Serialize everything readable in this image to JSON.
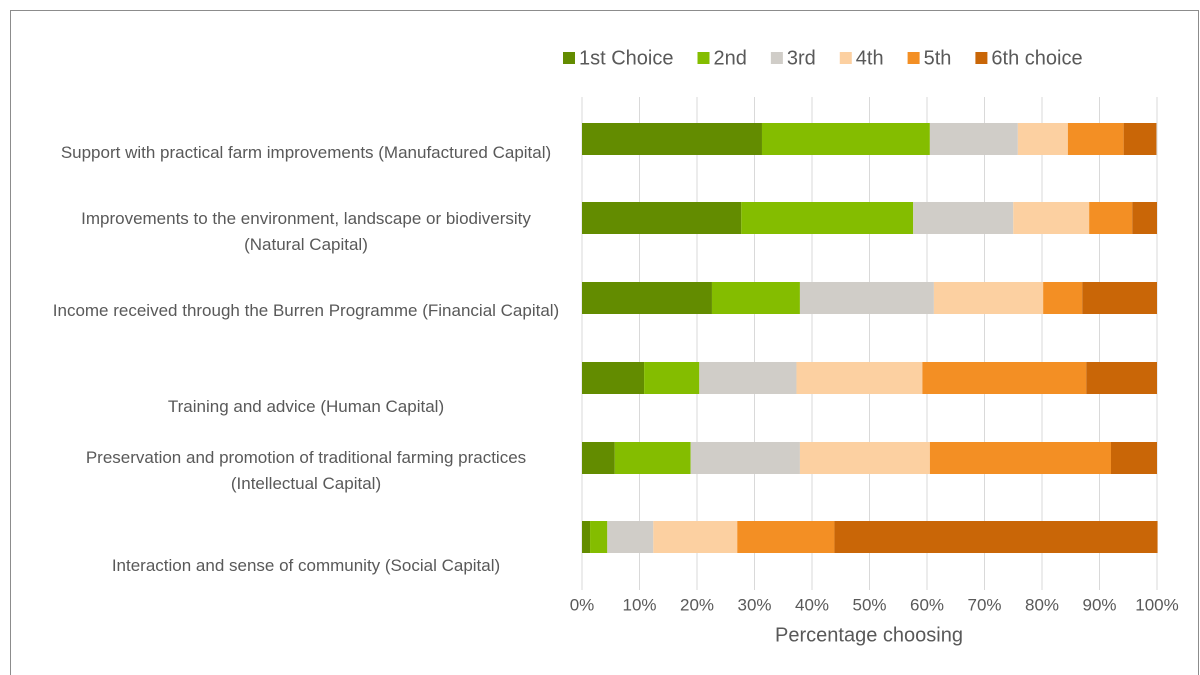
{
  "chart_data": {
    "type": "stacked-bar-horizontal",
    "x_label": "Percentage choosing",
    "categories": [
      "Support with practical farm improvements (Manufactured Capital)",
      "Improvements to the environment, landscape or biodiversity (Natural Capital)",
      "Income received through the Burren Programme (Financial Capital)",
      "Training and advice (Human Capital)",
      "Preservation and promotion of traditional farming practices (Intellectual Capital)",
      "Interaction and sense of community (Social Capital)"
    ],
    "series": [
      {
        "name": "1st Choice",
        "color": "#638c00",
        "values": [
          31.3,
          27.7,
          22.6,
          10.8,
          5.7,
          1.4
        ]
      },
      {
        "name": "2nd",
        "color": "#84bd00",
        "values": [
          29.2,
          29.9,
          15.3,
          9.6,
          13.2,
          3.0
        ]
      },
      {
        "name": "3rd",
        "color": "#d0cdc8",
        "values": [
          15.3,
          17.4,
          23.3,
          16.9,
          19.0,
          8.0
        ]
      },
      {
        "name": "4th",
        "color": "#fcd0a1",
        "values": [
          8.7,
          13.2,
          19.0,
          21.9,
          22.6,
          14.6
        ]
      },
      {
        "name": "5th",
        "color": "#f38f24",
        "values": [
          9.7,
          7.5,
          6.8,
          28.5,
          31.5,
          16.9
        ]
      },
      {
        "name": "6th choice",
        "color": "#c96607",
        "values": [
          5.7,
          4.3,
          13.0,
          12.3,
          8.0,
          56.2
        ]
      }
    ],
    "xlim": [
      0,
      100
    ],
    "xticks": [
      {
        "value": 0,
        "label": "0%"
      },
      {
        "value": 10,
        "label": "10%"
      },
      {
        "value": 20,
        "label": "20%"
      },
      {
        "value": 30,
        "label": "30%"
      },
      {
        "value": 40,
        "label": "40%"
      },
      {
        "value": 50,
        "label": "50%"
      },
      {
        "value": 60,
        "label": "60%"
      },
      {
        "value": 70,
        "label": "70%"
      },
      {
        "value": 80,
        "label": "80%"
      },
      {
        "value": 90,
        "label": "90%"
      },
      {
        "value": 100,
        "label": "100%"
      }
    ],
    "grid": true,
    "legend": "top"
  }
}
